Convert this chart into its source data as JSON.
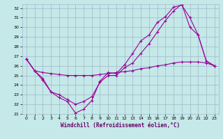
{
  "xlabel": "Windchill (Refroidissement éolien,°C)",
  "bg_color": "#c5e8e8",
  "line_color": "#990099",
  "grid_color": "#a0b8c8",
  "xlim": [
    -0.5,
    23.5
  ],
  "ylim": [
    21,
    32.4
  ],
  "xticks": [
    0,
    1,
    2,
    3,
    4,
    5,
    6,
    7,
    8,
    9,
    10,
    11,
    12,
    13,
    14,
    15,
    16,
    17,
    18,
    19,
    20,
    21,
    22,
    23
  ],
  "yticks": [
    21,
    22,
    23,
    24,
    25,
    26,
    27,
    28,
    29,
    30,
    31,
    32
  ],
  "line1_x": [
    0,
    1,
    2,
    3,
    4,
    5,
    6,
    7,
    8,
    9,
    10,
    11,
    12,
    13,
    14,
    15,
    16,
    17,
    18,
    19,
    20,
    21,
    22,
    23
  ],
  "line1_y": [
    26.7,
    25.5,
    24.7,
    23.3,
    22.7,
    22.3,
    21.1,
    21.5,
    22.4,
    24.4,
    25.3,
    25.2,
    26.1,
    27.3,
    28.6,
    29.2,
    30.5,
    31.1,
    32.1,
    32.3,
    31.0,
    29.2,
    26.5,
    26.0
  ],
  "line2_x": [
    0,
    1,
    2,
    3,
    4,
    5,
    6,
    7,
    8,
    9,
    10,
    11,
    12,
    13,
    14,
    15,
    16,
    17,
    18,
    19,
    20,
    21,
    22,
    23
  ],
  "line2_y": [
    26.7,
    25.5,
    24.5,
    23.3,
    23.0,
    22.5,
    22.0,
    22.3,
    22.8,
    24.3,
    25.0,
    25.0,
    25.8,
    26.3,
    27.3,
    28.3,
    29.5,
    30.7,
    31.7,
    32.4,
    30.0,
    29.2,
    26.5,
    26.0
  ],
  "line3_x": [
    0,
    1,
    2,
    3,
    4,
    5,
    6,
    7,
    8,
    9,
    10,
    11,
    12,
    13,
    14,
    15,
    16,
    17,
    18,
    19,
    20,
    21,
    22,
    23
  ],
  "line3_y": [
    26.7,
    25.5,
    25.3,
    25.2,
    25.1,
    25.0,
    25.0,
    25.0,
    25.0,
    25.1,
    25.2,
    25.3,
    25.4,
    25.5,
    25.7,
    25.8,
    26.0,
    26.1,
    26.3,
    26.4,
    26.4,
    26.4,
    26.3,
    26.0
  ]
}
